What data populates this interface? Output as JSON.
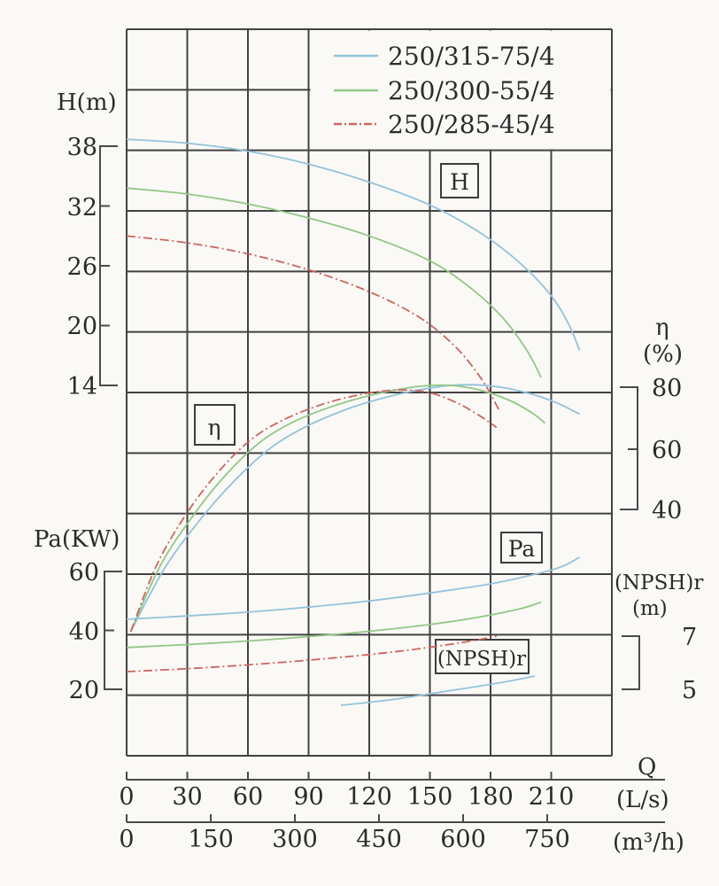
{
  "legend": {
    "items": [
      {
        "label": "250/315-75/4",
        "color": "#93c3dc",
        "style": "solid"
      },
      {
        "label": "250/300-55/4",
        "color": "#92c786",
        "style": "solid"
      },
      {
        "label": "250/285-45/4",
        "color": "#cc655e",
        "style": "dashdot"
      }
    ]
  },
  "labels": {
    "h_axis": "H(m)",
    "pa_axis": "Pa(KW)",
    "eta": "η",
    "eta_unit": "(%)",
    "npshr": "(NPSH)r",
    "npshr_unit": "(m)",
    "q": "Q",
    "q_unit_ls": "(L/s)",
    "q_unit_m3h": "(m³/h)",
    "box_h": "H",
    "box_eta": "η",
    "box_pa": "Pa",
    "box_npshr": "(NPSH)r"
  },
  "axes": {
    "h": {
      "ticks": [
        "38",
        "32",
        "26",
        "20",
        "14"
      ]
    },
    "pa": {
      "ticks": [
        "60",
        "40",
        "20"
      ]
    },
    "eta": {
      "ticks": [
        "80",
        "60",
        "40"
      ]
    },
    "npshr": {
      "ticks": [
        "7",
        "5"
      ]
    },
    "q_ls": {
      "ticks": [
        "0",
        "30",
        "60",
        "90",
        "120",
        "150",
        "180",
        "210"
      ]
    },
    "q_m3h": {
      "ticks": [
        "0",
        "150",
        "300",
        "450",
        "600",
        "750"
      ]
    }
  },
  "chart_data": {
    "type": "line",
    "title": "Pump performance curves",
    "xlabel": "Q",
    "x_units": [
      "L/s",
      "m³/h"
    ],
    "x_range_ls": [
      0,
      240
    ],
    "axes": {
      "H": {
        "label": "H(m)",
        "ticks": [
          38,
          32,
          26,
          20,
          14
        ]
      },
      "eta": {
        "label": "η(%)",
        "ticks": [
          80,
          60,
          40
        ]
      },
      "Pa": {
        "label": "Pa(KW)",
        "ticks": [
          60,
          40,
          20
        ]
      },
      "NPSH": {
        "label": "(NPSH)r (m)",
        "ticks": [
          7,
          5
        ]
      }
    },
    "grid": true,
    "legend_position": "top-right",
    "series": [
      {
        "name": "250/315-75/4",
        "quantity": "H",
        "unit": "m",
        "color": "#93c3dc",
        "style": "solid",
        "points": [
          [
            0,
            38.7
          ],
          [
            30,
            38.3
          ],
          [
            60,
            37.5
          ],
          [
            90,
            36.2
          ],
          [
            120,
            34.4
          ],
          [
            150,
            32.1
          ],
          [
            175,
            29.3
          ],
          [
            195,
            26.2
          ],
          [
            210,
            23.0
          ],
          [
            219,
            20.0
          ],
          [
            224,
            17.5
          ]
        ]
      },
      {
        "name": "250/300-55/4",
        "quantity": "H",
        "unit": "m",
        "color": "#92c786",
        "style": "solid",
        "points": [
          [
            0,
            33.8
          ],
          [
            30,
            33.2
          ],
          [
            60,
            32.2
          ],
          [
            90,
            30.8
          ],
          [
            120,
            29.0
          ],
          [
            150,
            26.5
          ],
          [
            170,
            23.8
          ],
          [
            186,
            20.8
          ],
          [
            198,
            17.5
          ],
          [
            205,
            14.8
          ]
        ]
      },
      {
        "name": "250/285-45/4",
        "quantity": "H",
        "unit": "m",
        "color": "#cc655e",
        "style": "dashdot",
        "points": [
          [
            0,
            29.0
          ],
          [
            30,
            28.3
          ],
          [
            60,
            27.2
          ],
          [
            90,
            25.6
          ],
          [
            120,
            23.4
          ],
          [
            145,
            20.8
          ],
          [
            163,
            17.8
          ],
          [
            176,
            14.5
          ],
          [
            184,
            11.6
          ]
        ]
      },
      {
        "name": "250/315-75/4",
        "quantity": "eta",
        "unit": "%",
        "color": "#93c3dc",
        "style": "solid",
        "points": [
          [
            2,
            0
          ],
          [
            19,
            21
          ],
          [
            38,
            38
          ],
          [
            55,
            50.5
          ],
          [
            72,
            60.5
          ],
          [
            90,
            67.5
          ],
          [
            112,
            73.5
          ],
          [
            135,
            77.8
          ],
          [
            155,
            80.2
          ],
          [
            170,
            80.8
          ],
          [
            185,
            80.0
          ],
          [
            200,
            77.8
          ],
          [
            213,
            74.8
          ],
          [
            224,
            71.2
          ]
        ]
      },
      {
        "name": "250/300-55/4",
        "quantity": "eta",
        "unit": "%",
        "color": "#92c786",
        "style": "solid",
        "points": [
          [
            2,
            0
          ],
          [
            17,
            22
          ],
          [
            34,
            39
          ],
          [
            50,
            52
          ],
          [
            66,
            62
          ],
          [
            82,
            68.5
          ],
          [
            103,
            74
          ],
          [
            125,
            78
          ],
          [
            145,
            80.3
          ],
          [
            160,
            80.6
          ],
          [
            175,
            79
          ],
          [
            190,
            75.5
          ],
          [
            200,
            71.8
          ],
          [
            207,
            68.3
          ]
        ]
      },
      {
        "name": "250/285-45/4",
        "quantity": "eta",
        "unit": "%",
        "color": "#cc655e",
        "style": "dashdot",
        "points": [
          [
            2,
            0
          ],
          [
            15,
            22
          ],
          [
            30,
            39
          ],
          [
            45,
            52
          ],
          [
            60,
            62
          ],
          [
            75,
            68.5
          ],
          [
            95,
            74
          ],
          [
            115,
            77.5
          ],
          [
            132,
            79
          ],
          [
            148,
            78.5
          ],
          [
            163,
            75
          ],
          [
            175,
            70.5
          ],
          [
            183,
            66.8
          ]
        ]
      },
      {
        "name": "250/315-75/4",
        "quantity": "Pa",
        "unit": "KW",
        "color": "#93c3dc",
        "style": "solid",
        "points": [
          [
            0,
            43.8
          ],
          [
            30,
            44.9
          ],
          [
            60,
            46.2
          ],
          [
            90,
            47.9
          ],
          [
            120,
            50.0
          ],
          [
            150,
            52.7
          ],
          [
            180,
            55.8
          ],
          [
            200,
            58.7
          ],
          [
            215,
            61.6
          ],
          [
            224,
            64.8
          ]
        ]
      },
      {
        "name": "250/300-55/4",
        "quantity": "Pa",
        "unit": "KW",
        "color": "#92c786",
        "style": "solid",
        "points": [
          [
            0,
            34.2
          ],
          [
            30,
            35.2
          ],
          [
            60,
            36.4
          ],
          [
            90,
            37.9
          ],
          [
            120,
            39.7
          ],
          [
            150,
            42.0
          ],
          [
            175,
            44.6
          ],
          [
            195,
            47.4
          ],
          [
            205,
            49.6
          ]
        ]
      },
      {
        "name": "250/285-45/4",
        "quantity": "Pa",
        "unit": "KW",
        "color": "#cc655e",
        "style": "dashdot",
        "points": [
          [
            0,
            26.0
          ],
          [
            30,
            27.0
          ],
          [
            60,
            28.3
          ],
          [
            90,
            29.9
          ],
          [
            120,
            31.8
          ],
          [
            145,
            33.8
          ],
          [
            165,
            35.8
          ],
          [
            177,
            37.2
          ],
          [
            183,
            38.0
          ]
        ]
      },
      {
        "name": "250/315-75/4",
        "quantity": "NPSH",
        "unit": "m",
        "color": "#93c3dc",
        "style": "solid",
        "points": [
          [
            106,
            4.4
          ],
          [
            130,
            4.6
          ],
          [
            160,
            4.95
          ],
          [
            185,
            5.25
          ],
          [
            202,
            5.5
          ]
        ]
      }
    ]
  }
}
